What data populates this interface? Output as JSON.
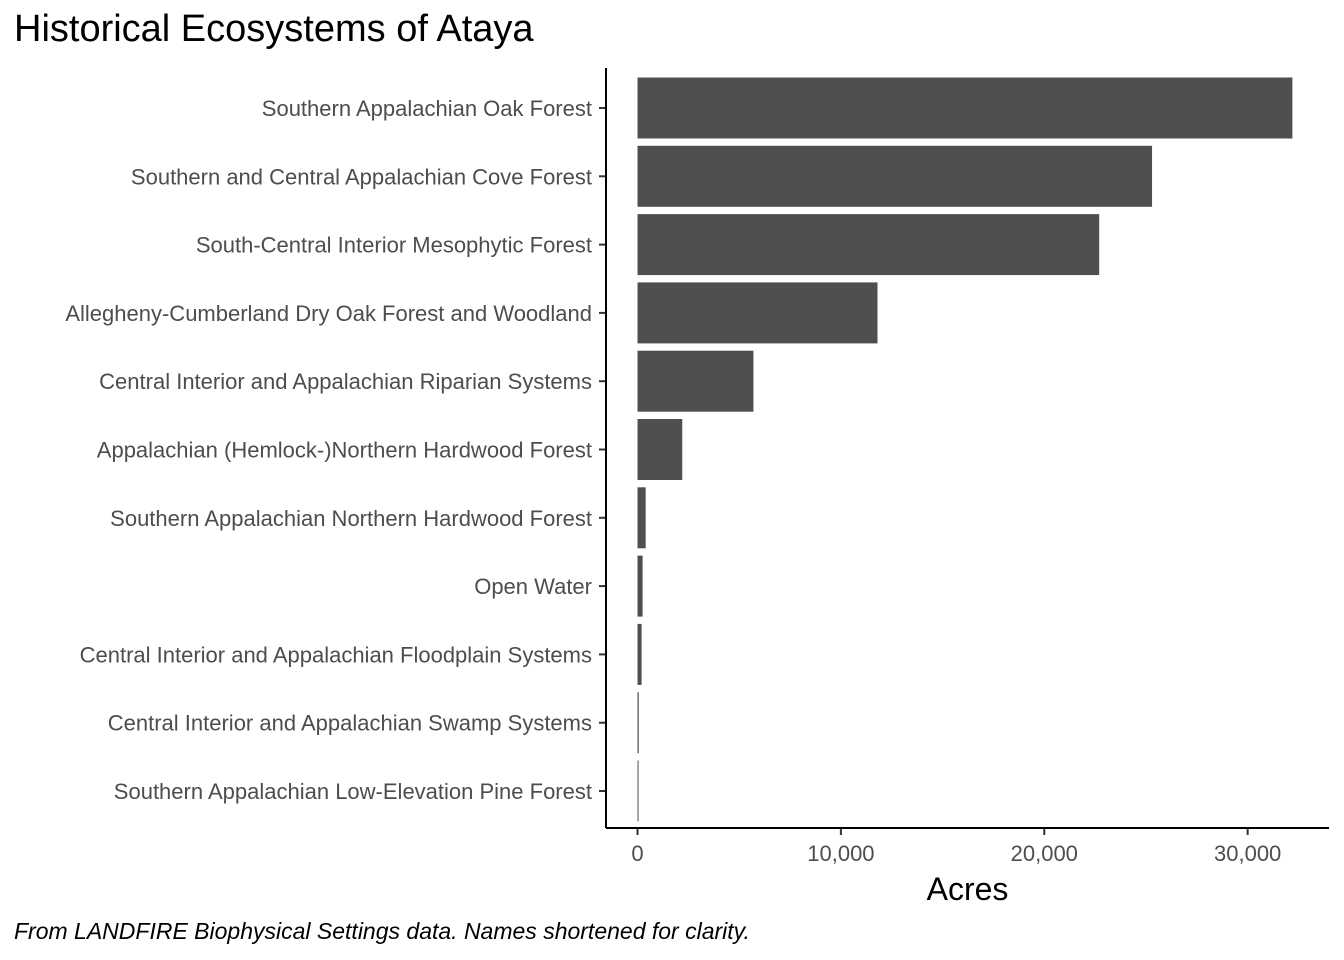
{
  "chart_data": {
    "type": "bar",
    "orientation": "horizontal",
    "title": "Historical Ecosystems of Ataya",
    "caption": "From LANDFIRE Biophysical Settings data. Names shortened for clarity.",
    "xlabel": "Acres",
    "ylabel": "",
    "xlim": [
      -1550,
      34000
    ],
    "xticks": [
      0,
      10000,
      20000,
      30000
    ],
    "xtick_labels": [
      "0",
      "10,000",
      "20,000",
      "30,000"
    ],
    "grid": false,
    "legend": "none",
    "bar_color": "#4f4f4f",
    "categories": [
      "Southern Appalachian Oak Forest",
      "Southern and Central Appalachian Cove Forest",
      "South-Central Interior Mesophytic Forest",
      "Allegheny-Cumberland Dry Oak Forest and Woodland",
      "Central Interior and Appalachian Riparian Systems",
      "Appalachian (Hemlock-)Northern Hardwood Forest",
      "Southern Appalachian Northern Hardwood Forest",
      "Open Water",
      "Central Interior and Appalachian Floodplain Systems",
      "Central Interior and Appalachian Swamp Systems",
      "Southern Appalachian Low-Elevation Pine Forest"
    ],
    "values": [
      32200,
      25300,
      22700,
      11800,
      5700,
      2200,
      400,
      250,
      200,
      60,
      40
    ]
  }
}
